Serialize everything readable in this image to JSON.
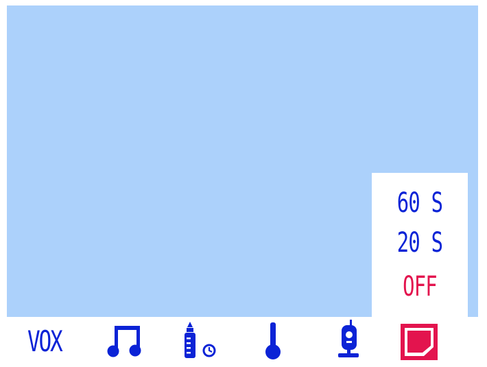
{
  "colors": {
    "screen_bg": "#acd1fb",
    "panel_bg": "#ffffff",
    "icon_blue": "#0b23d6",
    "active_red": "#e3144e"
  },
  "menu": {
    "items": [
      {
        "label": "60 S",
        "selected": false
      },
      {
        "label": "20 S",
        "selected": false
      },
      {
        "label": "OFF",
        "selected": true
      }
    ]
  },
  "toolbar": {
    "vox_label": "VOX",
    "icons": [
      {
        "name": "music-note-icon"
      },
      {
        "name": "bottle-timer-icon"
      },
      {
        "name": "thermometer-icon"
      },
      {
        "name": "camera-icon"
      },
      {
        "name": "screen-off-icon",
        "active": true
      }
    ]
  }
}
